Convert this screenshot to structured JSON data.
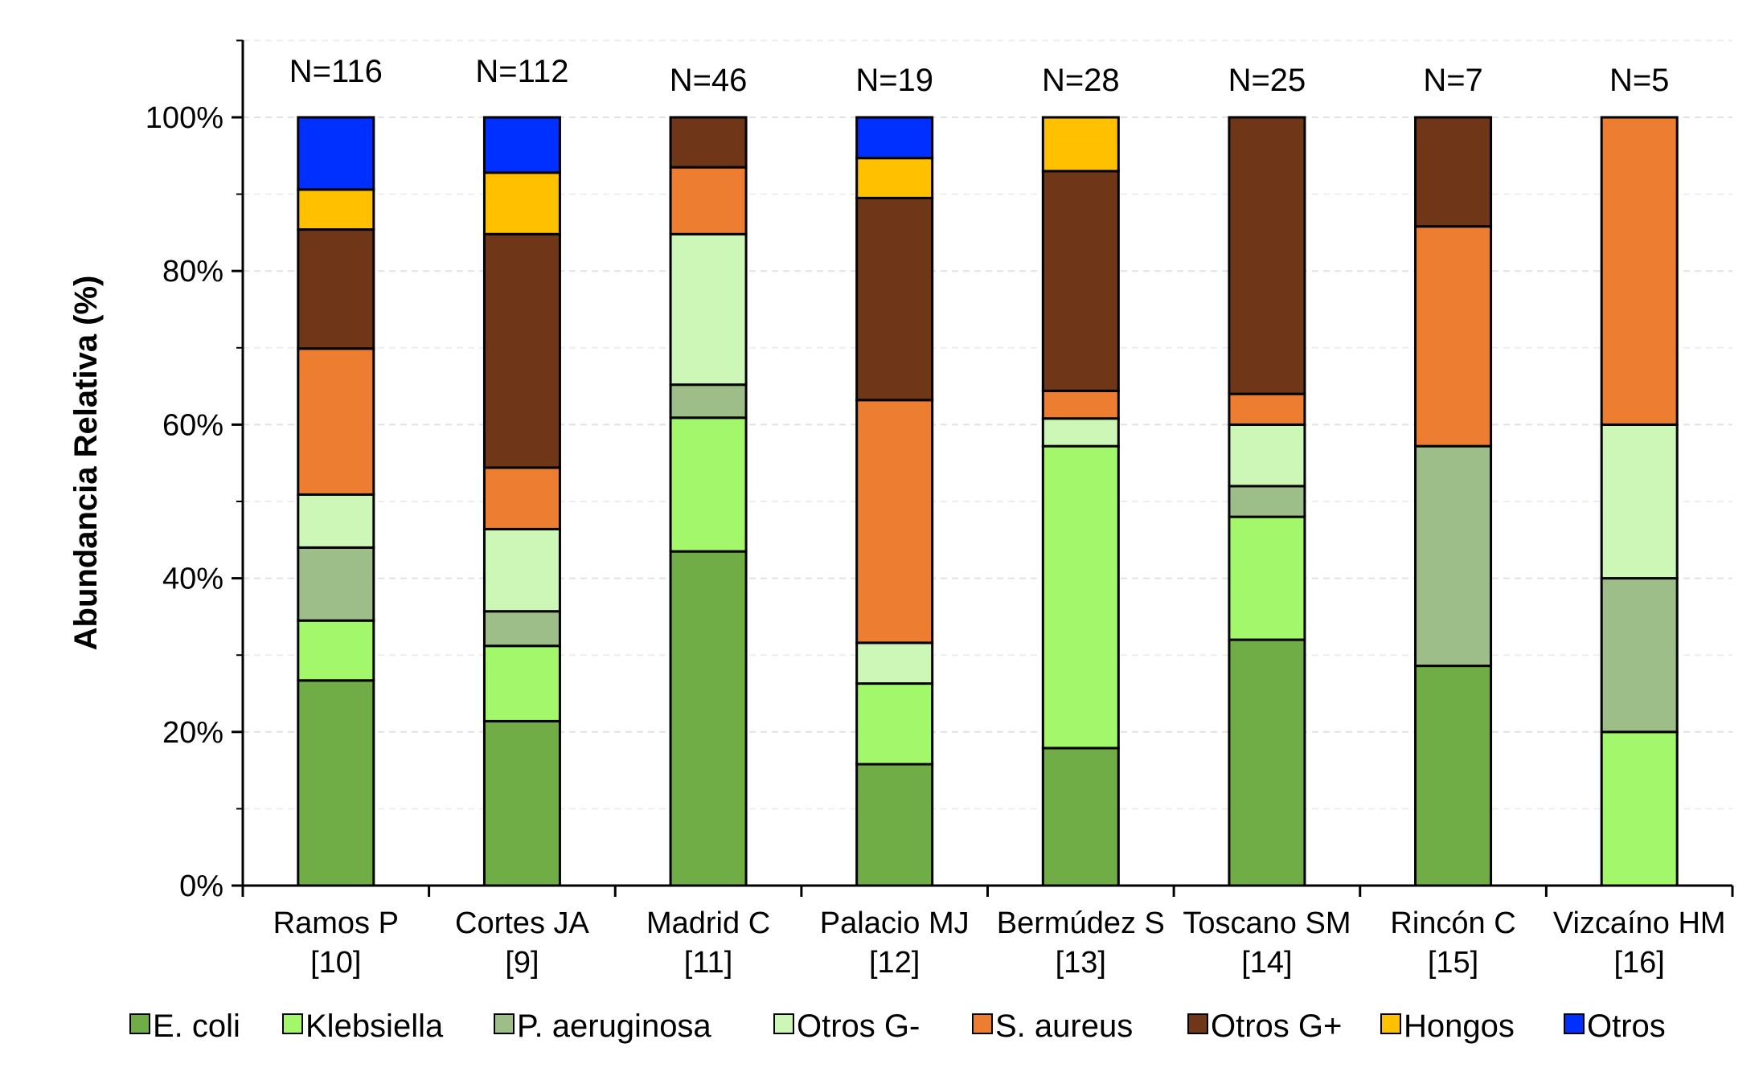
{
  "chart_data": {
    "type": "bar",
    "stacked": true,
    "normalized": true,
    "ylabel": "Abundancia Relativa (%)",
    "xlabel": "",
    "ylim": [
      0,
      100
    ],
    "yticks": [
      "0%",
      "20%",
      "40%",
      "60%",
      "80%",
      "100%"
    ],
    "grid": "horizontal-dashed",
    "legend_position": "bottom",
    "categories": [
      {
        "name": "Ramos P",
        "ref": "[10]",
        "n": "N=116"
      },
      {
        "name": "Cortes JA",
        "ref": "[9]",
        "n": "N=112"
      },
      {
        "name": "Madrid C",
        "ref": "[11]",
        "n": "N=46"
      },
      {
        "name": "Palacio MJ",
        "ref": "[12]",
        "n": "N=19"
      },
      {
        "name": "Bermúdez S",
        "ref": "[13]",
        "n": "N=28"
      },
      {
        "name": "Toscano SM",
        "ref": "[14]",
        "n": "N=25"
      },
      {
        "name": "Rincón C",
        "ref": "[15]",
        "n": "N=7"
      },
      {
        "name": "Vizcaíno HM",
        "ref": "[16]",
        "n": "N=5"
      }
    ],
    "series": [
      {
        "name": "E. coli",
        "color": "#70ad47",
        "values": [
          26.7,
          21.4,
          43.5,
          15.8,
          17.9,
          32.0,
          28.6,
          0
        ]
      },
      {
        "name": "Klebsiella",
        "color": "#a3f76b",
        "values": [
          7.8,
          9.8,
          17.4,
          10.5,
          39.3,
          16.0,
          0,
          20.0
        ]
      },
      {
        "name": "P. aeruginosa",
        "color": "#9dbe88",
        "values": [
          9.5,
          4.5,
          4.3,
          0,
          0,
          4.0,
          28.6,
          20.0
        ]
      },
      {
        "name": "Otros G-",
        "color": "#ccf7b6",
        "values": [
          6.9,
          10.7,
          19.6,
          5.3,
          3.6,
          8.0,
          0,
          20.0
        ]
      },
      {
        "name": "S. aureus",
        "color": "#ed7d31",
        "values": [
          19.0,
          8.0,
          8.7,
          31.6,
          3.6,
          4.0,
          28.6,
          40.0
        ]
      },
      {
        "name": "Otros G+",
        "color": "#6f3618",
        "values": [
          15.5,
          30.4,
          6.5,
          26.3,
          28.6,
          36.0,
          14.2,
          0
        ]
      },
      {
        "name": "Hongos",
        "color": "#ffc000",
        "values": [
          5.2,
          8.0,
          0,
          5.2,
          7.0,
          0,
          0,
          0
        ]
      },
      {
        "name": "Otros",
        "color": "#0030ff",
        "values": [
          9.4,
          7.2,
          0,
          5.3,
          0,
          0,
          0,
          0
        ]
      }
    ]
  }
}
